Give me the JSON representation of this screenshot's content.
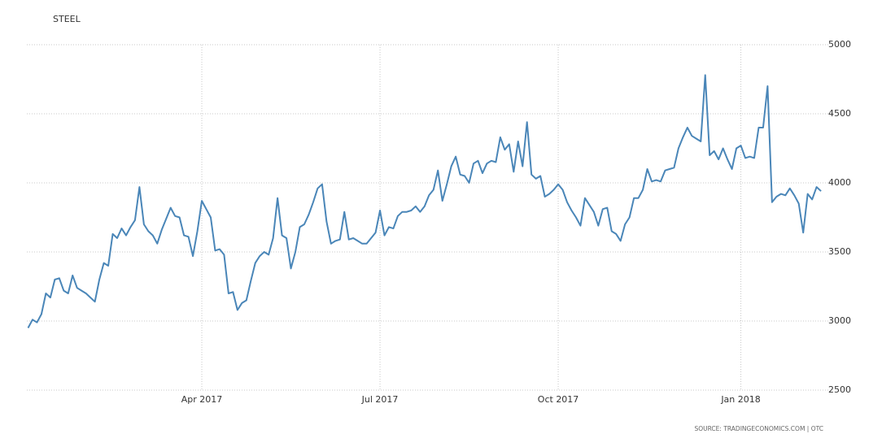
{
  "chart_data": {
    "type": "line",
    "title": "STEEL",
    "source": "SOURCE: TRADINGECONOMICS.COM | OTC",
    "color": "#4a86b8",
    "grid": true,
    "ylim": [
      2500,
      5000
    ],
    "yticks": [
      2500,
      3000,
      3500,
      4000,
      4500,
      5000
    ],
    "categories": [
      null,
      null,
      null,
      null,
      null,
      null,
      null,
      null,
      null,
      null,
      null,
      null,
      null,
      null,
      null,
      null,
      null,
      null,
      null,
      null,
      null,
      null,
      null,
      null,
      null,
      null,
      null,
      null,
      null,
      null,
      null,
      null,
      null,
      null,
      null,
      null,
      null,
      null,
      null,
      "Apr 2017",
      null,
      null,
      null,
      null,
      null,
      null,
      null,
      null,
      null,
      null,
      null,
      null,
      null,
      null,
      null,
      null,
      null,
      null,
      null,
      null,
      null,
      null,
      null,
      null,
      null,
      null,
      null,
      null,
      null,
      null,
      null,
      null,
      null,
      null,
      null,
      null,
      null,
      null,
      null,
      "Jul 2017",
      null,
      null,
      null,
      null,
      null,
      null,
      null,
      null,
      null,
      null,
      null,
      null,
      null,
      null,
      null,
      null,
      null,
      null,
      null,
      null,
      null,
      null,
      null,
      null,
      null,
      null,
      null,
      null,
      null,
      null,
      null,
      null,
      null,
      null,
      null,
      null,
      null,
      null,
      null,
      "Oct 2017",
      null,
      null,
      null,
      null,
      null,
      null,
      null,
      null,
      null,
      null,
      null,
      null,
      null,
      null,
      null,
      null,
      null,
      null,
      null,
      null,
      null,
      null,
      null,
      null,
      null,
      null,
      null,
      null,
      null,
      null,
      null,
      null,
      null,
      null,
      null,
      null,
      null,
      null,
      null,
      null,
      "Jan 2018",
      null,
      null,
      null,
      null,
      null,
      null,
      null,
      null,
      null,
      null,
      null,
      null,
      null,
      null,
      null,
      null,
      null,
      null
    ],
    "values": [
      2950,
      3010,
      2990,
      3050,
      3200,
      3170,
      3300,
      3310,
      3220,
      3200,
      3330,
      3240,
      3220,
      3200,
      3170,
      3140,
      3300,
      3420,
      3400,
      3630,
      3600,
      3670,
      3620,
      3680,
      3730,
      3970,
      3700,
      3650,
      3620,
      3560,
      3660,
      3740,
      3820,
      3760,
      3750,
      3620,
      3610,
      3470,
      3650,
      3870,
      3810,
      3750,
      3510,
      3520,
      3480,
      3200,
      3210,
      3080,
      3130,
      3150,
      3290,
      3420,
      3470,
      3500,
      3480,
      3600,
      3890,
      3620,
      3600,
      3380,
      3500,
      3680,
      3700,
      3770,
      3860,
      3960,
      3990,
      3720,
      3560,
      3580,
      3590,
      3790,
      3590,
      3600,
      3580,
      3560,
      3560,
      3600,
      3640,
      3800,
      3620,
      3680,
      3670,
      3760,
      3790,
      3790,
      3800,
      3830,
      3790,
      3830,
      3910,
      3950,
      4090,
      3870,
      3990,
      4120,
      4190,
      4060,
      4050,
      4000,
      4140,
      4160,
      4070,
      4140,
      4160,
      4150,
      4330,
      4240,
      4280,
      4080,
      4300,
      4120,
      4440,
      4060,
      4030,
      4050,
      3900,
      3920,
      3950,
      3990,
      3950,
      3860,
      3800,
      3750,
      3690,
      3890,
      3840,
      3790,
      3690,
      3810,
      3820,
      3650,
      3630,
      3580,
      3700,
      3750,
      3890,
      3890,
      3950,
      4100,
      4010,
      4020,
      4010,
      4090,
      4100,
      4110,
      4250,
      4330,
      4400,
      4340,
      4320,
      4300,
      4780,
      4200,
      4230,
      4170,
      4250,
      4170,
      4100,
      4250,
      4270,
      4180,
      4190,
      4180,
      4400,
      4400,
      4700,
      3860,
      3900,
      3920,
      3910,
      3960,
      3910,
      3850,
      3640,
      3920,
      3880,
      3970,
      3940
    ]
  }
}
